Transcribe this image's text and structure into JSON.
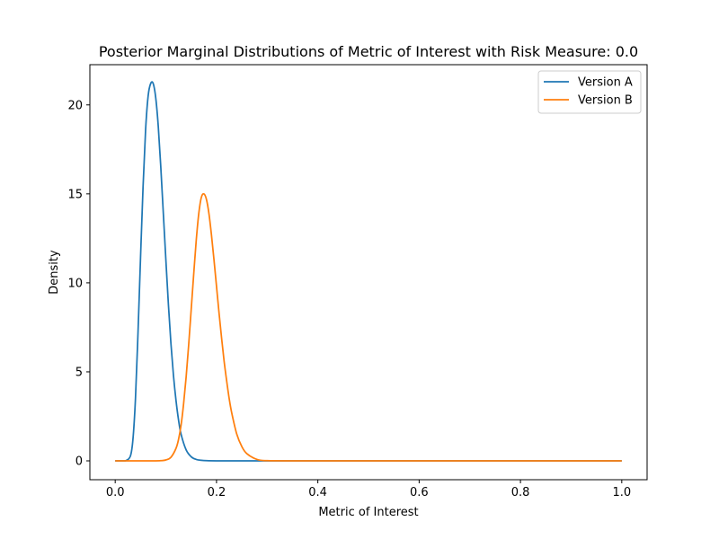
{
  "chart_data": {
    "type": "line",
    "title": "Posterior Marginal Distributions of Metric of Interest with Risk Measure: 0.0",
    "xlabel": "Metric of Interest",
    "ylabel": "Density",
    "xlim": [
      -0.05,
      1.05
    ],
    "ylim": [
      -1.06,
      22.26
    ],
    "xticks": [
      0.0,
      0.2,
      0.4,
      0.6,
      0.8,
      1.0
    ],
    "xtick_labels": [
      "0.0",
      "0.2",
      "0.4",
      "0.6",
      "0.8",
      "1.0"
    ],
    "yticks": [
      0,
      5,
      10,
      15,
      20
    ],
    "ytick_labels": [
      "0",
      "5",
      "10",
      "15",
      "20"
    ],
    "grid": false,
    "legend_position": "upper right",
    "series": [
      {
        "name": "Version A",
        "color": "#1f77b4",
        "peak_x": 0.075,
        "peak_y": 21.2,
        "x": [
          0.0,
          0.01,
          0.02,
          0.03,
          0.035,
          0.04,
          0.045,
          0.05,
          0.055,
          0.06,
          0.065,
          0.07,
          0.075,
          0.08,
          0.085,
          0.09,
          0.095,
          0.1,
          0.105,
          0.11,
          0.115,
          0.12,
          0.125,
          0.13,
          0.14,
          0.15,
          0.16,
          0.17,
          0.18,
          0.2,
          0.25,
          0.3,
          0.4,
          0.5,
          0.6,
          0.7,
          0.8,
          0.9,
          1.0
        ],
        "y": [
          0.0,
          0.0,
          0.0,
          0.27,
          1.2,
          3.5,
          7.2,
          11.4,
          15.4,
          18.6,
          20.5,
          21.2,
          21.2,
          20.4,
          18.8,
          16.5,
          13.9,
          11.3,
          8.8,
          6.6,
          4.8,
          3.4,
          2.3,
          1.5,
          0.62,
          0.23,
          0.08,
          0.03,
          0.01,
          0.0,
          0.0,
          0.0,
          0.0,
          0.0,
          0.0,
          0.0,
          0.0,
          0.0,
          0.0
        ]
      },
      {
        "name": "Version B",
        "color": "#ff7f0e",
        "peak_x": 0.175,
        "peak_y": 15.0,
        "x": [
          0.0,
          0.05,
          0.08,
          0.09,
          0.1,
          0.11,
          0.12,
          0.125,
          0.13,
          0.135,
          0.14,
          0.145,
          0.15,
          0.155,
          0.16,
          0.165,
          0.17,
          0.175,
          0.18,
          0.185,
          0.19,
          0.195,
          0.2,
          0.205,
          0.21,
          0.215,
          0.22,
          0.225,
          0.23,
          0.24,
          0.25,
          0.26,
          0.28,
          0.3,
          0.35,
          0.4,
          0.5,
          0.6,
          0.7,
          0.8,
          0.9,
          1.0
        ],
        "y": [
          0.0,
          0.0,
          0.0,
          0.01,
          0.05,
          0.2,
          0.7,
          1.2,
          2.0,
          3.2,
          4.7,
          6.5,
          8.5,
          10.5,
          12.4,
          13.9,
          14.8,
          15.0,
          14.7,
          13.9,
          12.7,
          11.3,
          9.8,
          8.3,
          6.9,
          5.6,
          4.5,
          3.5,
          2.7,
          1.5,
          0.8,
          0.4,
          0.08,
          0.01,
          0.0,
          0.0,
          0.0,
          0.0,
          0.0,
          0.0,
          0.0,
          0.0
        ]
      }
    ]
  }
}
